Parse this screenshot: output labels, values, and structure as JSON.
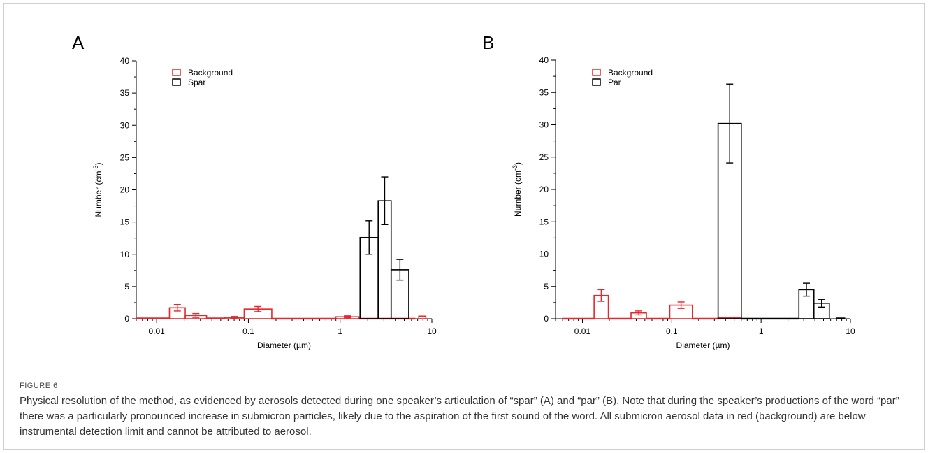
{
  "figure_label": "FIGURE 6",
  "caption": "Physical resolution of the method, as evidenced by aerosols detected during one speaker’s articulation of “spar” (A) and “par” (B). Note that during the speaker’s productions of the word “par” there was a particularly pronounced increase in submicron particles, likely due to the aspiration of the first sound of the word. All submicron aerosol data in red (background) are below instrumental detection limit and cannot be attributed to aerosol.",
  "colors": {
    "background_series": "#e8262b",
    "word_series": "#000000"
  },
  "chart_data": [
    {
      "panel": "A",
      "type": "bar",
      "xlabel": "Diameter (µm)",
      "ylabel_main": "Number (cm",
      "ylabel_sup": "-3",
      "ylabel_end": ")",
      "x_scale": "log",
      "xlim": [
        0.006,
        10
      ],
      "ylim": [
        0,
        40
      ],
      "xticks": [
        {
          "v": 0.01,
          "t": "0.01"
        },
        {
          "v": 0.1,
          "t": "0.1"
        },
        {
          "v": 1,
          "t": "1"
        },
        {
          "v": 10,
          "t": "10"
        }
      ],
      "yticks": [
        {
          "v": 0,
          "t": "0"
        },
        {
          "v": 5,
          "t": "5"
        },
        {
          "v": 10,
          "t": "10"
        },
        {
          "v": 15,
          "t": "15"
        },
        {
          "v": 20,
          "t": "20"
        },
        {
          "v": 25,
          "t": "25"
        },
        {
          "v": 30,
          "t": "30"
        },
        {
          "v": 35,
          "t": "35"
        },
        {
          "v": 40,
          "t": "40"
        }
      ],
      "legend_position": "top-left",
      "series": [
        {
          "name": "Background",
          "color": "#e8262b",
          "bins": [
            {
              "x0": 0.006,
              "x1": 0.0138,
              "y": 0.1,
              "err": 0
            },
            {
              "x0": 0.0138,
              "x1": 0.0205,
              "y": 1.7,
              "err": 0.5
            },
            {
              "x0": 0.0205,
              "x1": 0.035,
              "y": 0.5,
              "err": 0.3
            },
            {
              "x0": 0.035,
              "x1": 0.055,
              "y": 0.1,
              "err": 0
            },
            {
              "x0": 0.055,
              "x1": 0.09,
              "y": 0.2,
              "err": 0.15
            },
            {
              "x0": 0.09,
              "x1": 0.18,
              "y": 1.5,
              "err": 0.4
            },
            {
              "x0": 0.18,
              "x1": 0.9,
              "y": 0.05,
              "err": 0
            },
            {
              "x0": 0.9,
              "x1": 1.6,
              "y": 0.3,
              "err": 0.15
            },
            {
              "x0": 1.6,
              "x1": 6.5,
              "y": 0.05,
              "err": 0
            },
            {
              "x0": 7.2,
              "x1": 8.6,
              "y": 0.4,
              "err": 0
            }
          ]
        },
        {
          "name": "Spar",
          "color": "#000000",
          "bins": [
            {
              "x0": 1.65,
              "x1": 2.6,
              "y": 12.6,
              "err": 2.6
            },
            {
              "x0": 2.6,
              "x1": 3.6,
              "y": 18.3,
              "err": 3.7
            },
            {
              "x0": 3.6,
              "x1": 5.6,
              "y": 7.6,
              "err": 1.6
            }
          ]
        }
      ]
    },
    {
      "panel": "B",
      "type": "bar",
      "xlabel": "Diameter (µm)",
      "ylabel_main": "Number (cm",
      "ylabel_sup": "-3",
      "ylabel_end": ")",
      "x_scale": "log",
      "xlim": [
        0.005,
        10
      ],
      "ylim": [
        0,
        40
      ],
      "xticks": [
        {
          "v": 0.01,
          "t": "0.01"
        },
        {
          "v": 0.1,
          "t": "0.1"
        },
        {
          "v": 1,
          "t": "1"
        },
        {
          "v": 10,
          "t": "10"
        }
      ],
      "yticks": [
        {
          "v": 0,
          "t": "0"
        },
        {
          "v": 5,
          "t": "5"
        },
        {
          "v": 10,
          "t": "10"
        },
        {
          "v": 15,
          "t": "15"
        },
        {
          "v": 20,
          "t": "20"
        },
        {
          "v": 25,
          "t": "25"
        },
        {
          "v": 30,
          "t": "30"
        },
        {
          "v": 35,
          "t": "35"
        },
        {
          "v": 40,
          "t": "40"
        }
      ],
      "legend_position": "top-left",
      "series": [
        {
          "name": "Background",
          "color": "#e8262b",
          "bins": [
            {
              "x0": 0.006,
              "x1": 0.0135,
              "y": 0.05,
              "err": 0
            },
            {
              "x0": 0.0135,
              "x1": 0.0195,
              "y": 3.6,
              "err": 0.9
            },
            {
              "x0": 0.0195,
              "x1": 0.035,
              "y": 0.05,
              "err": 0
            },
            {
              "x0": 0.035,
              "x1": 0.052,
              "y": 0.9,
              "err": 0.3
            },
            {
              "x0": 0.052,
              "x1": 0.095,
              "y": 0.05,
              "err": 0
            },
            {
              "x0": 0.095,
              "x1": 0.17,
              "y": 2.1,
              "err": 0.5
            },
            {
              "x0": 0.17,
              "x1": 0.33,
              "y": 0.05,
              "err": 0
            },
            {
              "x0": 0.33,
              "x1": 0.6,
              "y": 0.15,
              "err": 0.1
            }
          ]
        },
        {
          "name": "Par",
          "color": "#000000",
          "bins": [
            {
              "x0": 0.33,
              "x1": 0.6,
              "y": 30.2,
              "err": 6.1
            },
            {
              "x0": 0.6,
              "x1": 2.65,
              "y": 0.05,
              "err": 0
            },
            {
              "x0": 2.65,
              "x1": 3.9,
              "y": 4.5,
              "err": 1.0
            },
            {
              "x0": 3.9,
              "x1": 5.8,
              "y": 2.4,
              "err": 0.6
            },
            {
              "x0": 7.0,
              "x1": 8.6,
              "y": 0.1,
              "err": 0
            }
          ]
        }
      ]
    }
  ]
}
